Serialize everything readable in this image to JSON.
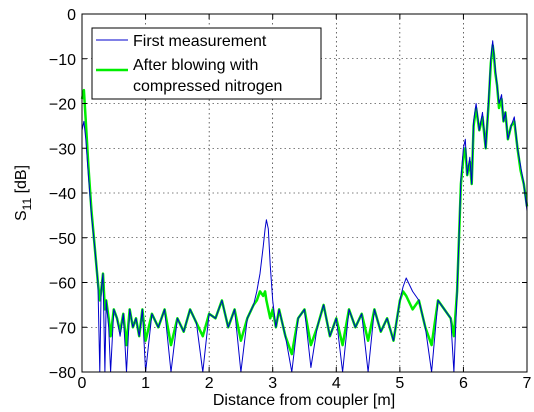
{
  "chart_data": {
    "type": "line",
    "title": "",
    "xlabel": "Distance from coupler [m]",
    "ylabel": {
      "main": "S",
      "sub": "11",
      "unit": " [dB]"
    },
    "xlim": [
      0,
      7
    ],
    "ylim": [
      -80,
      0
    ],
    "xticks": [
      0,
      1,
      2,
      3,
      4,
      5,
      6,
      7
    ],
    "yticks": [
      0,
      -10,
      -20,
      -30,
      -40,
      -50,
      -60,
      -70,
      -80
    ],
    "xtick_labels": [
      "0",
      "1",
      "2",
      "3",
      "4",
      "5",
      "6",
      "7"
    ],
    "ytick_labels": [
      "0",
      "−10",
      "−20",
      "−30",
      "−40",
      "−50",
      "−60",
      "−70",
      "−80"
    ],
    "grid": true,
    "legend": {
      "position": "top-left",
      "entries": [
        {
          "lines": [
            "First measurement"
          ]
        },
        {
          "lines": [
            "After blowing with",
            "compressed nitrogen"
          ]
        }
      ]
    },
    "series": [
      {
        "name": "First measurement",
        "color": "#0000cc",
        "x": [
          0.0,
          0.03,
          0.06,
          0.1,
          0.15,
          0.2,
          0.25,
          0.28,
          0.3,
          0.33,
          0.36,
          0.38,
          0.42,
          0.45,
          0.5,
          0.55,
          0.6,
          0.65,
          0.7,
          0.75,
          0.8,
          0.85,
          0.9,
          0.95,
          1.0,
          1.1,
          1.2,
          1.3,
          1.4,
          1.5,
          1.6,
          1.7,
          1.8,
          1.9,
          2.0,
          2.1,
          2.2,
          2.3,
          2.4,
          2.5,
          2.6,
          2.7,
          2.75,
          2.8,
          2.85,
          2.88,
          2.9,
          2.93,
          2.96,
          3.0,
          3.05,
          3.1,
          3.2,
          3.3,
          3.4,
          3.5,
          3.6,
          3.7,
          3.8,
          3.9,
          4.0,
          4.1,
          4.2,
          4.3,
          4.4,
          4.5,
          4.6,
          4.7,
          4.8,
          4.9,
          5.0,
          5.05,
          5.1,
          5.2,
          5.3,
          5.4,
          5.5,
          5.6,
          5.7,
          5.8,
          5.85,
          5.9,
          5.93,
          5.96,
          6.0,
          6.03,
          6.06,
          6.1,
          6.13,
          6.16,
          6.2,
          6.25,
          6.3,
          6.35,
          6.4,
          6.43,
          6.46,
          6.48,
          6.5,
          6.53,
          6.56,
          6.6,
          6.63,
          6.66,
          6.7,
          6.75,
          6.8,
          6.85,
          6.9,
          6.95,
          7.0
        ],
        "y": [
          -26,
          -24,
          -28,
          -36,
          -45,
          -52,
          -60,
          -80,
          -62,
          -58,
          -80,
          -64,
          -70,
          -80,
          -66,
          -68,
          -72,
          -67,
          -80,
          -66,
          -70,
          -68,
          -72,
          -66,
          -80,
          -67,
          -70,
          -66,
          -80,
          -68,
          -71,
          -66,
          -69,
          -80,
          -67,
          -68,
          -64,
          -70,
          -66,
          -80,
          -68,
          -65,
          -62,
          -58,
          -52,
          -48,
          -46,
          -48,
          -56,
          -64,
          -70,
          -66,
          -72,
          -80,
          -68,
          -66,
          -79,
          -70,
          -65,
          -72,
          -68,
          -80,
          -66,
          -70,
          -67,
          -80,
          -66,
          -71,
          -68,
          -73,
          -64,
          -61,
          -59,
          -62,
          -64,
          -70,
          -80,
          -64,
          -66,
          -68,
          -80,
          -62,
          -50,
          -37,
          -30,
          -28,
          -36,
          -32,
          -38,
          -24,
          -20,
          -26,
          -22,
          -30,
          -18,
          -10,
          -6,
          -9,
          -12,
          -16,
          -20,
          -18,
          -24,
          -22,
          -28,
          -25,
          -23,
          -30,
          -34,
          -38,
          -44
        ]
      },
      {
        "name": "After blowing with compressed nitrogen",
        "color": "#00ee00",
        "x": [
          0.0,
          0.03,
          0.06,
          0.1,
          0.15,
          0.2,
          0.25,
          0.28,
          0.3,
          0.33,
          0.36,
          0.38,
          0.42,
          0.45,
          0.5,
          0.55,
          0.6,
          0.65,
          0.7,
          0.75,
          0.8,
          0.85,
          0.9,
          0.95,
          1.0,
          1.1,
          1.2,
          1.3,
          1.4,
          1.5,
          1.6,
          1.7,
          1.8,
          1.9,
          2.0,
          2.1,
          2.2,
          2.3,
          2.4,
          2.5,
          2.6,
          2.7,
          2.75,
          2.8,
          2.85,
          2.88,
          2.9,
          2.93,
          2.96,
          3.0,
          3.05,
          3.1,
          3.2,
          3.3,
          3.4,
          3.5,
          3.6,
          3.7,
          3.8,
          3.9,
          4.0,
          4.1,
          4.2,
          4.3,
          4.4,
          4.5,
          4.6,
          4.7,
          4.8,
          4.9,
          5.0,
          5.05,
          5.1,
          5.2,
          5.3,
          5.4,
          5.5,
          5.6,
          5.7,
          5.8,
          5.85,
          5.9,
          5.93,
          5.96,
          6.0,
          6.03,
          6.06,
          6.1,
          6.13,
          6.16,
          6.2,
          6.25,
          6.3,
          6.35,
          6.4,
          6.43,
          6.46,
          6.48,
          6.5,
          6.53,
          6.56,
          6.6,
          6.63,
          6.66,
          6.7,
          6.75,
          6.8,
          6.85,
          6.9,
          6.95,
          7.0
        ],
        "y": [
          -19,
          -17,
          -24,
          -34,
          -44,
          -52,
          -60,
          -64,
          -62,
          -58,
          -66,
          -64,
          -68,
          -72,
          -66,
          -68,
          -71,
          -67,
          -74,
          -66,
          -70,
          -68,
          -72,
          -66,
          -73,
          -67,
          -70,
          -66,
          -74,
          -68,
          -71,
          -66,
          -69,
          -72,
          -67,
          -68,
          -64,
          -70,
          -66,
          -73,
          -68,
          -65,
          -64,
          -62,
          -63,
          -62,
          -64,
          -66,
          -68,
          -66,
          -70,
          -66,
          -72,
          -76,
          -68,
          -66,
          -74,
          -70,
          -65,
          -72,
          -68,
          -74,
          -66,
          -70,
          -67,
          -73,
          -66,
          -71,
          -68,
          -73,
          -64,
          -62,
          -63,
          -66,
          -64,
          -70,
          -74,
          -64,
          -66,
          -68,
          -72,
          -62,
          -50,
          -38,
          -32,
          -30,
          -36,
          -33,
          -38,
          -25,
          -21,
          -26,
          -23,
          -30,
          -19,
          -11,
          -7,
          -9,
          -13,
          -16,
          -21,
          -19,
          -24,
          -22,
          -28,
          -25,
          -24,
          -30,
          -35,
          -38,
          -43
        ]
      }
    ]
  }
}
